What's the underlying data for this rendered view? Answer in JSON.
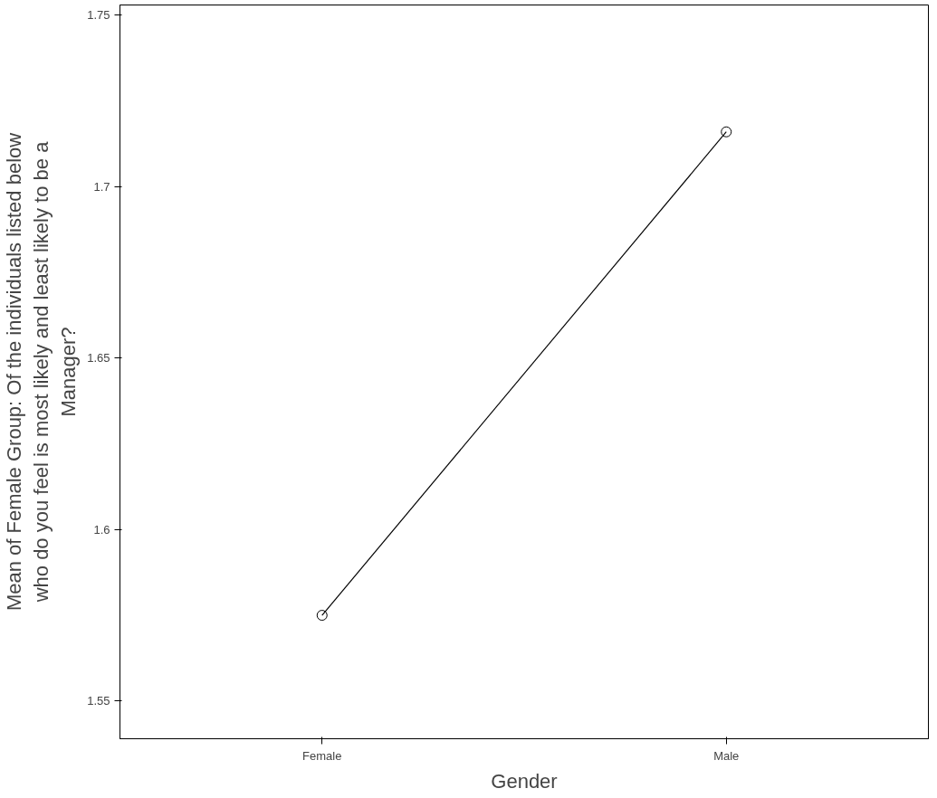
{
  "chart_data": {
    "type": "line",
    "xlabel": "Gender",
    "ylabel": "Mean of Female Group: Of the individuals listed below\nwho do you feel is most likely and least likely to be a\nManager?",
    "categories": [
      "Female",
      "Male"
    ],
    "series": [
      {
        "color": "#000000",
        "values": [
          1.575,
          1.716
        ]
      }
    ],
    "ylim": [
      1.539,
      1.753
    ],
    "yticks": [
      1.55,
      1.6,
      1.65,
      1.7,
      1.75
    ],
    "grid": false,
    "marker": "circle",
    "line_style": "solid"
  }
}
